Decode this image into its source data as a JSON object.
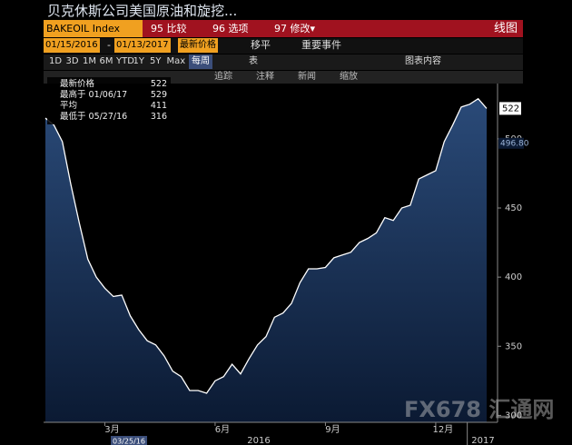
{
  "title": "贝克休斯公司美国原油和旋挖...",
  "toolbar": {
    "ticker": "BAKEOIL Index",
    "compare": "95 比较",
    "options": "96 选项",
    "edit": "97 修改▾",
    "view": "线图",
    "start_date": "01/15/2016",
    "date_sep": "-",
    "end_date": "01/13/2017",
    "field": "最新价格",
    "move": "移平",
    "events": "重要事件",
    "ranges": [
      "1D",
      "3D",
      "1M",
      "6M",
      "YTD",
      "1Y",
      "5Y",
      "Max"
    ],
    "period": "每周",
    "table": "表",
    "chart_content": "图表内容",
    "tools": [
      "追踪",
      "注释",
      "新闻",
      "缩放"
    ]
  },
  "chart_data": {
    "type": "area",
    "categories": [
      null,
      null,
      null,
      null,
      null,
      null,
      null,
      "3月",
      null,
      null,
      null,
      null,
      null,
      null,
      null,
      null,
      null,
      null,
      null,
      null,
      "6月",
      null,
      null,
      null,
      null,
      null,
      null,
      null,
      null,
      null,
      null,
      null,
      null,
      "9月",
      null,
      null,
      null,
      null,
      null,
      null,
      null,
      null,
      null,
      null,
      null,
      null,
      "12月",
      null,
      null,
      null,
      null,
      null,
      null
    ],
    "year_labels": [
      "2016",
      "2017"
    ],
    "cursor_label": "03/25/16",
    "series": [
      {
        "name": "最新价格",
        "color": "#ffffff",
        "values": [
          515,
          510,
          498,
          467,
          439,
          413,
          400,
          392,
          386,
          387,
          372,
          362,
          354,
          351,
          343,
          332,
          328,
          318,
          318,
          316,
          325,
          328,
          337,
          330,
          341,
          351,
          357,
          371,
          374,
          381,
          396,
          406,
          406,
          407,
          414,
          416,
          418,
          425,
          428,
          432,
          443,
          441,
          450,
          452,
          471,
          474,
          477,
          498,
          510,
          523,
          525,
          529,
          522
        ]
      }
    ],
    "reference": {
      "value": 496.8,
      "label": "496.80"
    },
    "stats": [
      {
        "label": "最新价格",
        "value": 522
      },
      {
        "label": "最高于 01/06/17",
        "value": 529
      },
      {
        "label": "平均",
        "value": 411
      },
      {
        "label": "最低于 05/27/16",
        "value": 316
      }
    ],
    "ylim": [
      295,
      540
    ],
    "yticks": [
      300,
      350,
      400,
      450,
      500
    ]
  },
  "watermark": "FX678 汇通网"
}
